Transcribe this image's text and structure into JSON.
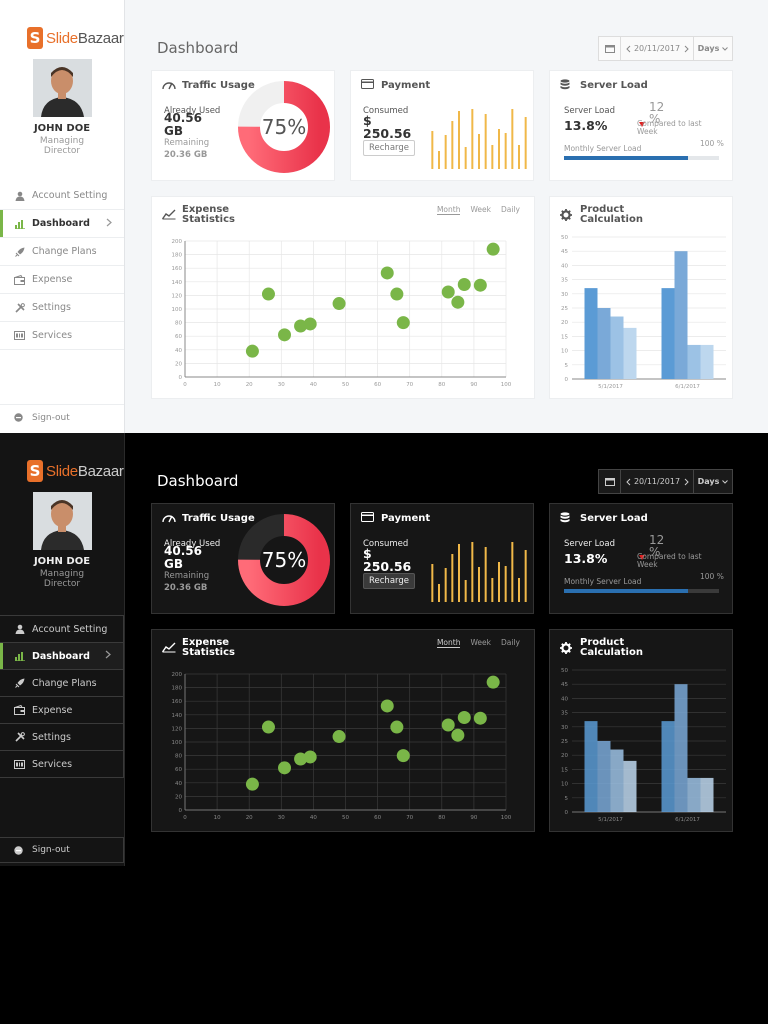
{
  "brand": {
    "name_part1": "Slide",
    "name_part2": "Bazaar",
    "mark": "S"
  },
  "user": {
    "name": "JOHN DOE",
    "role": "Managing Director"
  },
  "nav": [
    {
      "label": "Account Setting",
      "icon": "user-icon"
    },
    {
      "label": "Dashboard",
      "icon": "bar-chart-icon",
      "active": true
    },
    {
      "label": "Change Plans",
      "icon": "rocket-icon"
    },
    {
      "label": "Expense",
      "icon": "wallet-icon"
    },
    {
      "label": "Settings",
      "icon": "tools-icon"
    },
    {
      "label": "Services",
      "icon": "services-icon"
    }
  ],
  "signout": "Sign-out",
  "header": {
    "title": "Dashboard",
    "date": "20/11/2017",
    "unit": "Days"
  },
  "traffic": {
    "title": "Traffic Usage",
    "used_label": "Already Used",
    "used_value": "40.56 GB",
    "remaining_label": "Remaining",
    "remaining_value": "20.36 GB",
    "percent": 75,
    "percent_text": "75%"
  },
  "payment": {
    "title": "Payment",
    "consumed_label": "Consumed",
    "consumed_value": "$ 250.56",
    "button": "Recharge",
    "bar_values": [
      38,
      18,
      34,
      48,
      58,
      22,
      60,
      35,
      55,
      24,
      40,
      36,
      60,
      24,
      52
    ]
  },
  "server": {
    "title": "Server Load",
    "load_label": "Server Load",
    "load_value": "13.8%",
    "change_value": "12 %",
    "change_note": "Compared to last Week",
    "monthly_label": "Monthly Server Load",
    "monthly_value": "100 %",
    "monthly_fraction": 0.8
  },
  "expense": {
    "title": "Expense Statistics",
    "tabs": [
      "Month",
      "Week",
      "Daily"
    ]
  },
  "product": {
    "title": "Product Calculation"
  },
  "chart_data": [
    {
      "type": "scatter",
      "title": "Expense Statistics",
      "xlim": [
        0,
        100
      ],
      "ylim": [
        0,
        200
      ],
      "x_ticks": [
        0,
        10,
        20,
        30,
        40,
        50,
        60,
        70,
        80,
        90,
        100
      ],
      "y_ticks": [
        0,
        20,
        40,
        60,
        80,
        100,
        120,
        140,
        160,
        180,
        200
      ],
      "grid": true,
      "points": [
        {
          "x": 21,
          "y": 38
        },
        {
          "x": 26,
          "y": 122
        },
        {
          "x": 31,
          "y": 62
        },
        {
          "x": 36,
          "y": 75
        },
        {
          "x": 39,
          "y": 78
        },
        {
          "x": 48,
          "y": 108
        },
        {
          "x": 63,
          "y": 153
        },
        {
          "x": 66,
          "y": 122
        },
        {
          "x": 68,
          "y": 80
        },
        {
          "x": 82,
          "y": 125
        },
        {
          "x": 85,
          "y": 110
        },
        {
          "x": 87,
          "y": 136
        },
        {
          "x": 92,
          "y": 135
        },
        {
          "x": 96,
          "y": 188
        }
      ],
      "color": "#7ab648"
    },
    {
      "type": "bar",
      "title": "Product Calculation",
      "categories": [
        "5/1/2017",
        "6/1/2017"
      ],
      "ylim": [
        0,
        50
      ],
      "y_ticks": [
        0,
        5,
        10,
        15,
        20,
        25,
        30,
        35,
        40,
        45,
        50
      ],
      "grid": true,
      "series": [
        {
          "values": [
            32,
            32
          ],
          "color": "#5b9bd5"
        },
        {
          "values": [
            25,
            45
          ],
          "color": "#7aa9d8"
        },
        {
          "values": [
            22,
            12
          ],
          "color": "#9cc2e5"
        },
        {
          "values": [
            18,
            12
          ],
          "color": "#bdd7ee"
        }
      ]
    }
  ],
  "colors": {
    "accent_green": "#7ab648",
    "donut_red": "#f0475a",
    "bar_gold": "#f0b848",
    "progress_blue": "#2a6fb0",
    "brand_orange": "#e8702a",
    "down_red": "#e02020"
  }
}
